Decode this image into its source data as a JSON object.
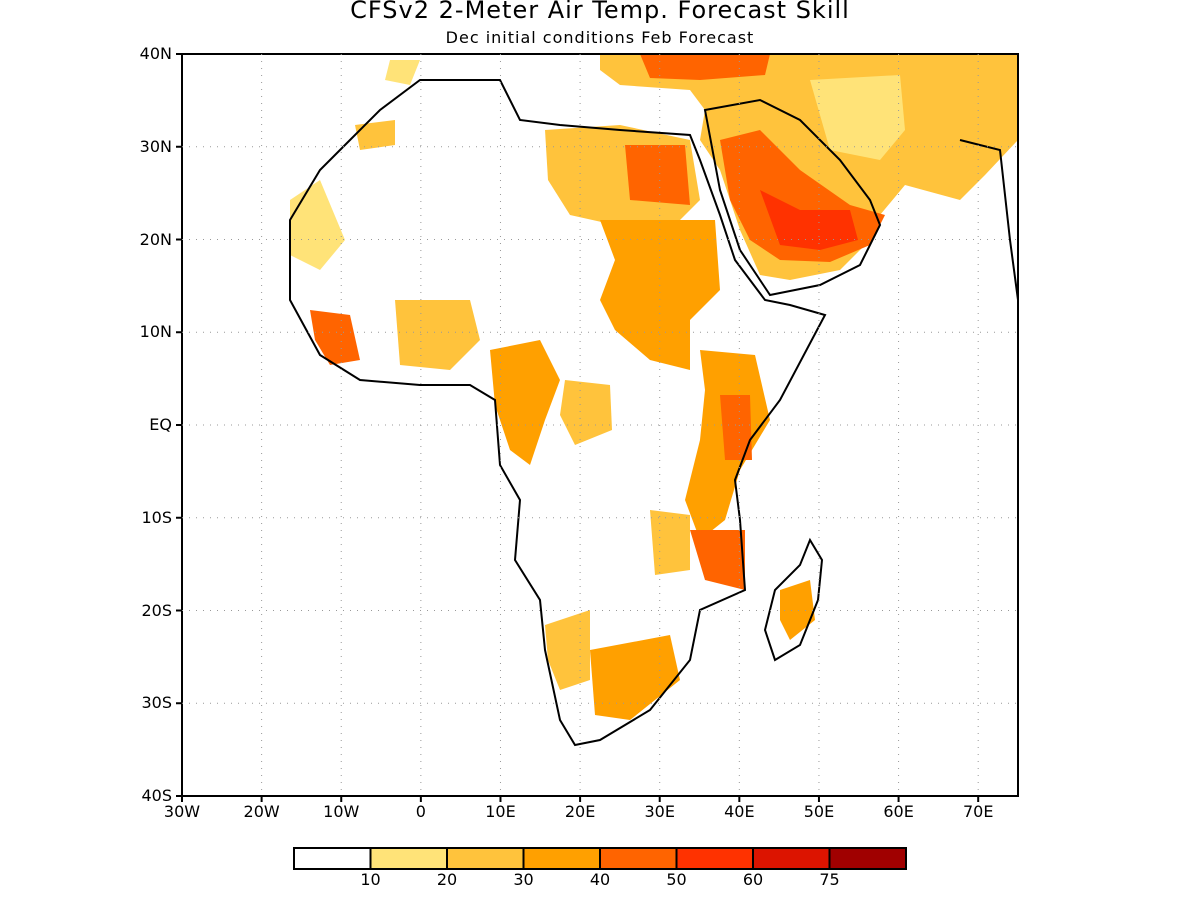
{
  "figure": {
    "title": "CFSv2 2-Meter Air Temp. Forecast Skill",
    "subtitle": "Dec initial conditions  Feb Forecast"
  },
  "map_axes": {
    "lat_labels": [
      "40N",
      "30N",
      "20N",
      "10N",
      "EQ",
      "10S",
      "20S",
      "30S",
      "40S"
    ],
    "lon_labels": [
      "30W",
      "20W",
      "10W",
      "0",
      "10E",
      "20E",
      "30E",
      "40E",
      "50E",
      "60E",
      "70E"
    ],
    "lat_range": [
      -40,
      40
    ],
    "lon_range": [
      -30,
      75
    ],
    "grid": "dotted"
  },
  "colorbar": {
    "labels": [
      "10",
      "20",
      "30",
      "40",
      "50",
      "60",
      "75"
    ],
    "colors": [
      "#ffffff",
      "#ffe378",
      "#ffc33c",
      "#ffa000",
      "#ff6400",
      "#ff3200",
      "#dc1400",
      "#a00000"
    ]
  },
  "skill_colors": {
    "l1": "#ffe378",
    "l2": "#ffc33c",
    "l3": "#ffa000",
    "l4": "#ff6400",
    "l5": "#ff3200"
  }
}
